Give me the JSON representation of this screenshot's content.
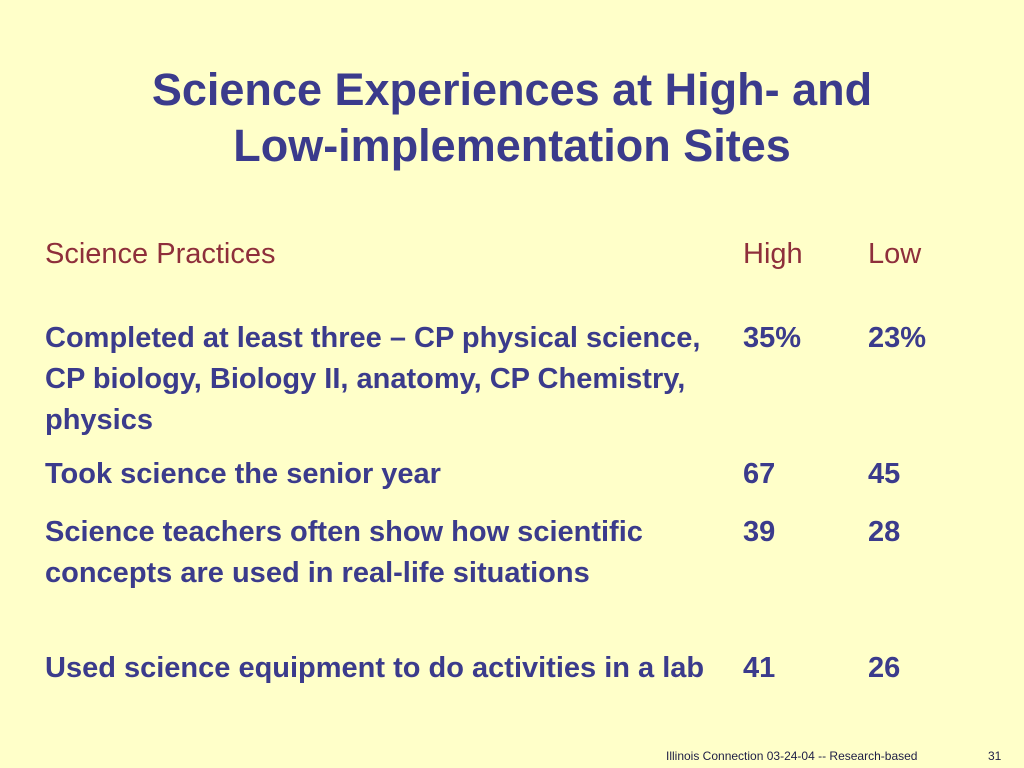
{
  "slide": {
    "title_lines": [
      "Science Experiences at High- and",
      "Low-implementation Sites"
    ],
    "table": {
      "headers": {
        "practice": "Science Practices",
        "high": "High",
        "low": "Low"
      },
      "rows": [
        {
          "practice": "Completed at least three – CP physical science, CP biology, Biology II, anatomy, CP Chemistry, physics",
          "high": "35%",
          "low": "23%"
        },
        {
          "practice": "Took science the senior year",
          "high": "67",
          "low": "45"
        },
        {
          "practice": "Science teachers often show how scientific concepts are used in real-life situations",
          "high": "39",
          "low": "28"
        },
        {
          "practice": "Used science equipment to do activities in a lab",
          "high": "41",
          "low": "26"
        }
      ]
    },
    "footer": {
      "text": "Illinois Connection 03-24-04 -- Research-based",
      "page_number": "31"
    }
  },
  "colors": {
    "background": "#ffffc9",
    "title": "#3b3b8c",
    "header": "#8e2f3b",
    "body_text": "#3b3b8c"
  }
}
